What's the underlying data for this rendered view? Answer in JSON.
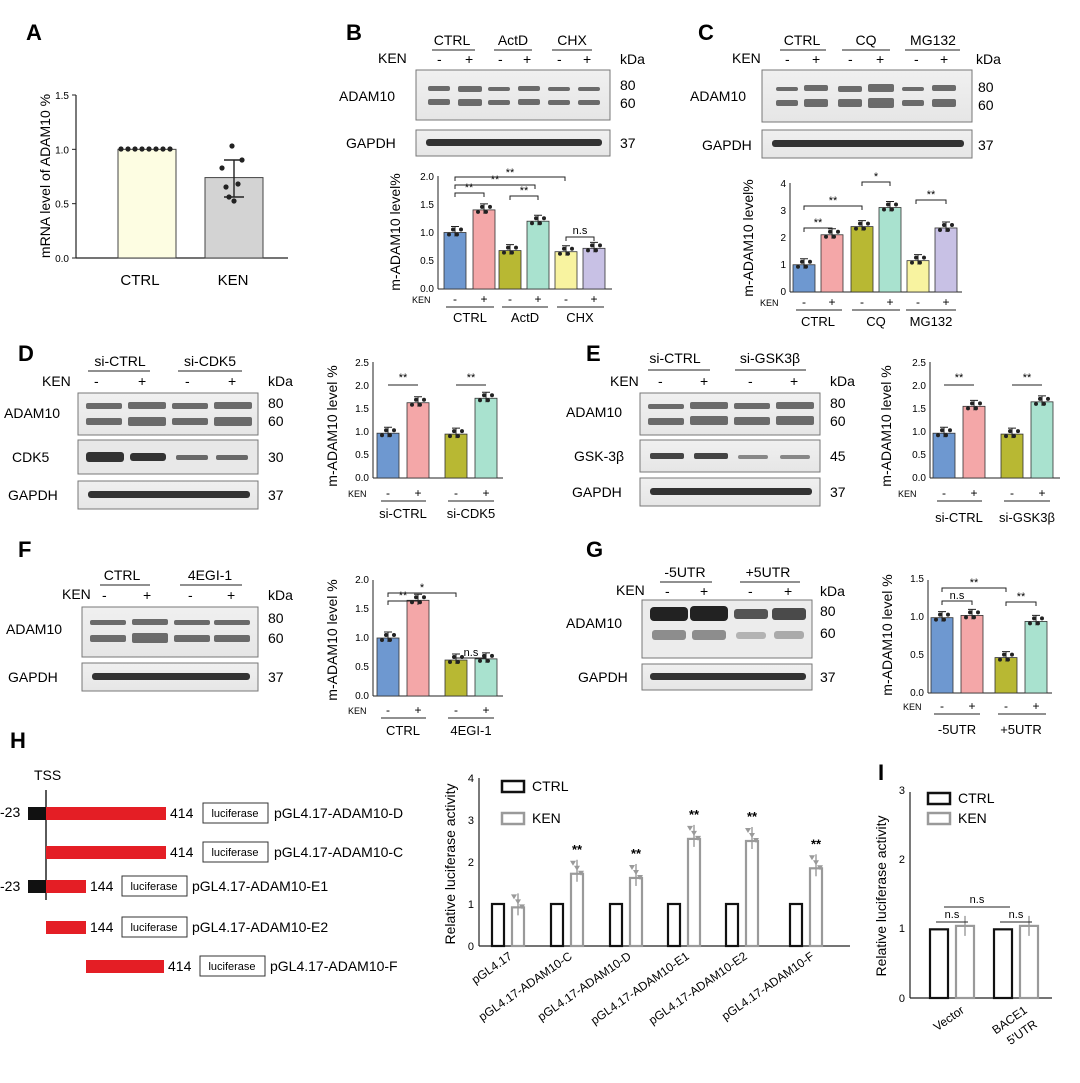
{
  "panel_letters": {
    "a": "A",
    "b": "B",
    "c": "C",
    "d": "D",
    "e": "E",
    "f": "F",
    "g": "G",
    "h": "H",
    "i": "I"
  },
  "common": {
    "ken": "KEN",
    "kda": "kDa",
    "minus": "-",
    "plus": "+",
    "adam10": "ADAM10",
    "gapdh": "GAPDH",
    "m_adam10_pct": "m-ADAM10 level%",
    "m_adam10_pct_sp": "m-ADAM10 level %",
    "kd80": "80",
    "kd60": "60",
    "kd37": "37",
    "kd30": "30",
    "kd45": "45",
    "sig2": "**",
    "sig1": "*",
    "ns": "n.s"
  },
  "blots": {
    "b": {
      "groups": [
        "CTRL",
        "ActD",
        "CHX"
      ]
    },
    "c": {
      "groups": [
        "CTRL",
        "CQ",
        "MG132"
      ]
    },
    "d": {
      "groups": [
        "si-CTRL",
        "si-CDK5"
      ],
      "extra": "CDK5"
    },
    "e": {
      "groups": [
        "si-CTRL",
        "si-GSK3β"
      ],
      "extra": "GSK-3β"
    },
    "f": {
      "groups": [
        "CTRL",
        "4EGI-1"
      ]
    },
    "g": {
      "groups": [
        "-5UTR",
        "+5UTR"
      ]
    }
  },
  "panel_h": {
    "tss": "TSS",
    "neg23": "-23",
    "n414": "414",
    "n144": "144",
    "luc": "luciferase",
    "constructs": [
      "pGL4.17-ADAM10-D",
      "pGL4.17-ADAM10-C",
      "pGL4.17-ADAM10-E1",
      "pGL4.17-ADAM10-E2",
      "pGL4.17-ADAM10-F"
    ]
  },
  "chart_data": [
    {
      "id": "A",
      "type": "bar",
      "ylabel": "mRNA level of ADAM10  %",
      "categories": [
        "CTRL",
        "KEN"
      ],
      "values": [
        1.0,
        0.74
      ],
      "errors": [
        0.0,
        0.17
      ],
      "ylim": [
        0,
        1.5
      ],
      "yticks": [
        "0.0",
        "0.5",
        "1.0",
        "1.5"
      ],
      "colors": [
        "#fdfde2",
        "#d3d3d3"
      ]
    },
    {
      "id": "B",
      "type": "bar",
      "ylabel": "m-ADAM10 level%",
      "ken_row": [
        "-",
        "+",
        "-",
        "+",
        "-",
        "+"
      ],
      "groups": [
        "CTRL",
        "ActD",
        "CHX"
      ],
      "values": [
        1.0,
        1.4,
        0.68,
        1.2,
        0.66,
        0.72
      ],
      "ylim": [
        0,
        2.0
      ],
      "yticks": [
        "0.0",
        "0.5",
        "1.0",
        "1.5",
        "2.0"
      ],
      "colors": [
        "#6e98d0",
        "#f4a7a8",
        "#b8b833",
        "#a9e2cf",
        "#f8f3a0",
        "#c8c1e5"
      ],
      "annotations": [
        "**",
        "**",
        "**",
        "**",
        "n.s"
      ]
    },
    {
      "id": "C",
      "type": "bar",
      "ylabel": "m-ADAM10 level%",
      "groups": [
        "CTRL",
        "CQ",
        "MG132"
      ],
      "values": [
        1.0,
        2.1,
        2.4,
        3.1,
        1.15,
        2.35
      ],
      "ylim": [
        0,
        4
      ],
      "yticks": [
        "0",
        "1",
        "2",
        "3",
        "4"
      ],
      "colors": [
        "#6e98d0",
        "#f4a7a8",
        "#b8b833",
        "#a9e2cf",
        "#f8f3a0",
        "#c8c1e5"
      ],
      "annotations": [
        "**",
        "**",
        "*",
        "**"
      ]
    },
    {
      "id": "D",
      "type": "bar",
      "ylabel": "m-ADAM10 level %",
      "groups": [
        "si-CTRL",
        "si-CDK5"
      ],
      "values": [
        1.0,
        1.68,
        0.98,
        1.78
      ],
      "ylim": [
        0,
        2.5
      ],
      "yticks": [
        "0.0",
        "0.5",
        "1.0",
        "1.5",
        "2.0",
        "2.5"
      ],
      "colors": [
        "#6e98d0",
        "#f4a7a8",
        "#b8b833",
        "#a9e2cf"
      ],
      "annotations": [
        "**",
        "**"
      ]
    },
    {
      "id": "E",
      "type": "bar",
      "ylabel": "m-ADAM10 level %",
      "groups": [
        "si-CTRL",
        "si-GSK3β"
      ],
      "values": [
        1.0,
        1.6,
        0.98,
        1.7
      ],
      "ylim": [
        0,
        2.5
      ],
      "yticks": [
        "0.0",
        "0.5",
        "1.0",
        "1.5",
        "2.0",
        "2.5"
      ],
      "colors": [
        "#6e98d0",
        "#f4a7a8",
        "#b8b833",
        "#a9e2cf"
      ],
      "annotations": [
        "**",
        "**"
      ]
    },
    {
      "id": "F",
      "type": "bar",
      "ylabel": "m-ADAM10 level %",
      "groups": [
        "CTRL",
        "4EGI-1"
      ],
      "values": [
        1.0,
        1.65,
        0.62,
        0.64
      ],
      "ylim": [
        0,
        2.0
      ],
      "yticks": [
        "0.0",
        "0.5",
        "1.0",
        "1.5",
        "2.0"
      ],
      "colors": [
        "#6e98d0",
        "#f4a7a8",
        "#b8b833",
        "#a9e2cf"
      ],
      "annotations": [
        "**",
        "*",
        "n.s"
      ]
    },
    {
      "id": "G",
      "type": "bar",
      "ylabel": "m-ADAM10 level %",
      "groups": [
        "-5UTR",
        "+5UTR"
      ],
      "values": [
        1.0,
        1.03,
        0.47,
        0.95
      ],
      "ylim": [
        0,
        1.5
      ],
      "yticks": [
        "0.0",
        "0.5",
        "1.0",
        "1.5"
      ],
      "colors": [
        "#6e98d0",
        "#f4a7a8",
        "#b8b833",
        "#a9e2cf"
      ],
      "annotations": [
        "**",
        "n.s",
        "**"
      ]
    },
    {
      "id": "H",
      "type": "bar",
      "ylabel": "Relative luciferase activity",
      "legend": [
        "CTRL",
        "KEN"
      ],
      "categories": [
        "pGL4.17",
        "pGL4.17-ADAM10-C",
        "pGL4.17-ADAM10-D",
        "pGL4.17-ADAM10-E1",
        "pGL4.17-ADAM10-E2",
        "pGL4.17-ADAM10-F"
      ],
      "series": [
        {
          "name": "CTRL",
          "values": [
            1,
            1,
            1,
            1,
            1,
            1
          ]
        },
        {
          "name": "KEN",
          "values": [
            0.92,
            1.72,
            1.62,
            2.55,
            2.5,
            1.85
          ]
        }
      ],
      "ylim": [
        0,
        4
      ],
      "yticks": [
        "0",
        "1",
        "2",
        "3",
        "4"
      ],
      "annotations": [
        "",
        "**",
        "**",
        "**",
        "**",
        "**"
      ]
    },
    {
      "id": "I",
      "type": "bar",
      "ylabel": "Relative luciferase activity",
      "legend": [
        "CTRL",
        "KEN"
      ],
      "categories": [
        "Vector",
        "BACE1\n5'UTR"
      ],
      "series": [
        {
          "name": "CTRL",
          "values": [
            1,
            1
          ]
        },
        {
          "name": "KEN",
          "values": [
            1.05,
            1.05
          ]
        }
      ],
      "ylim": [
        0,
        3
      ],
      "yticks": [
        "0",
        "1",
        "2",
        "3"
      ],
      "annotations": [
        "n.s",
        "n.s",
        "n.s"
      ]
    }
  ]
}
